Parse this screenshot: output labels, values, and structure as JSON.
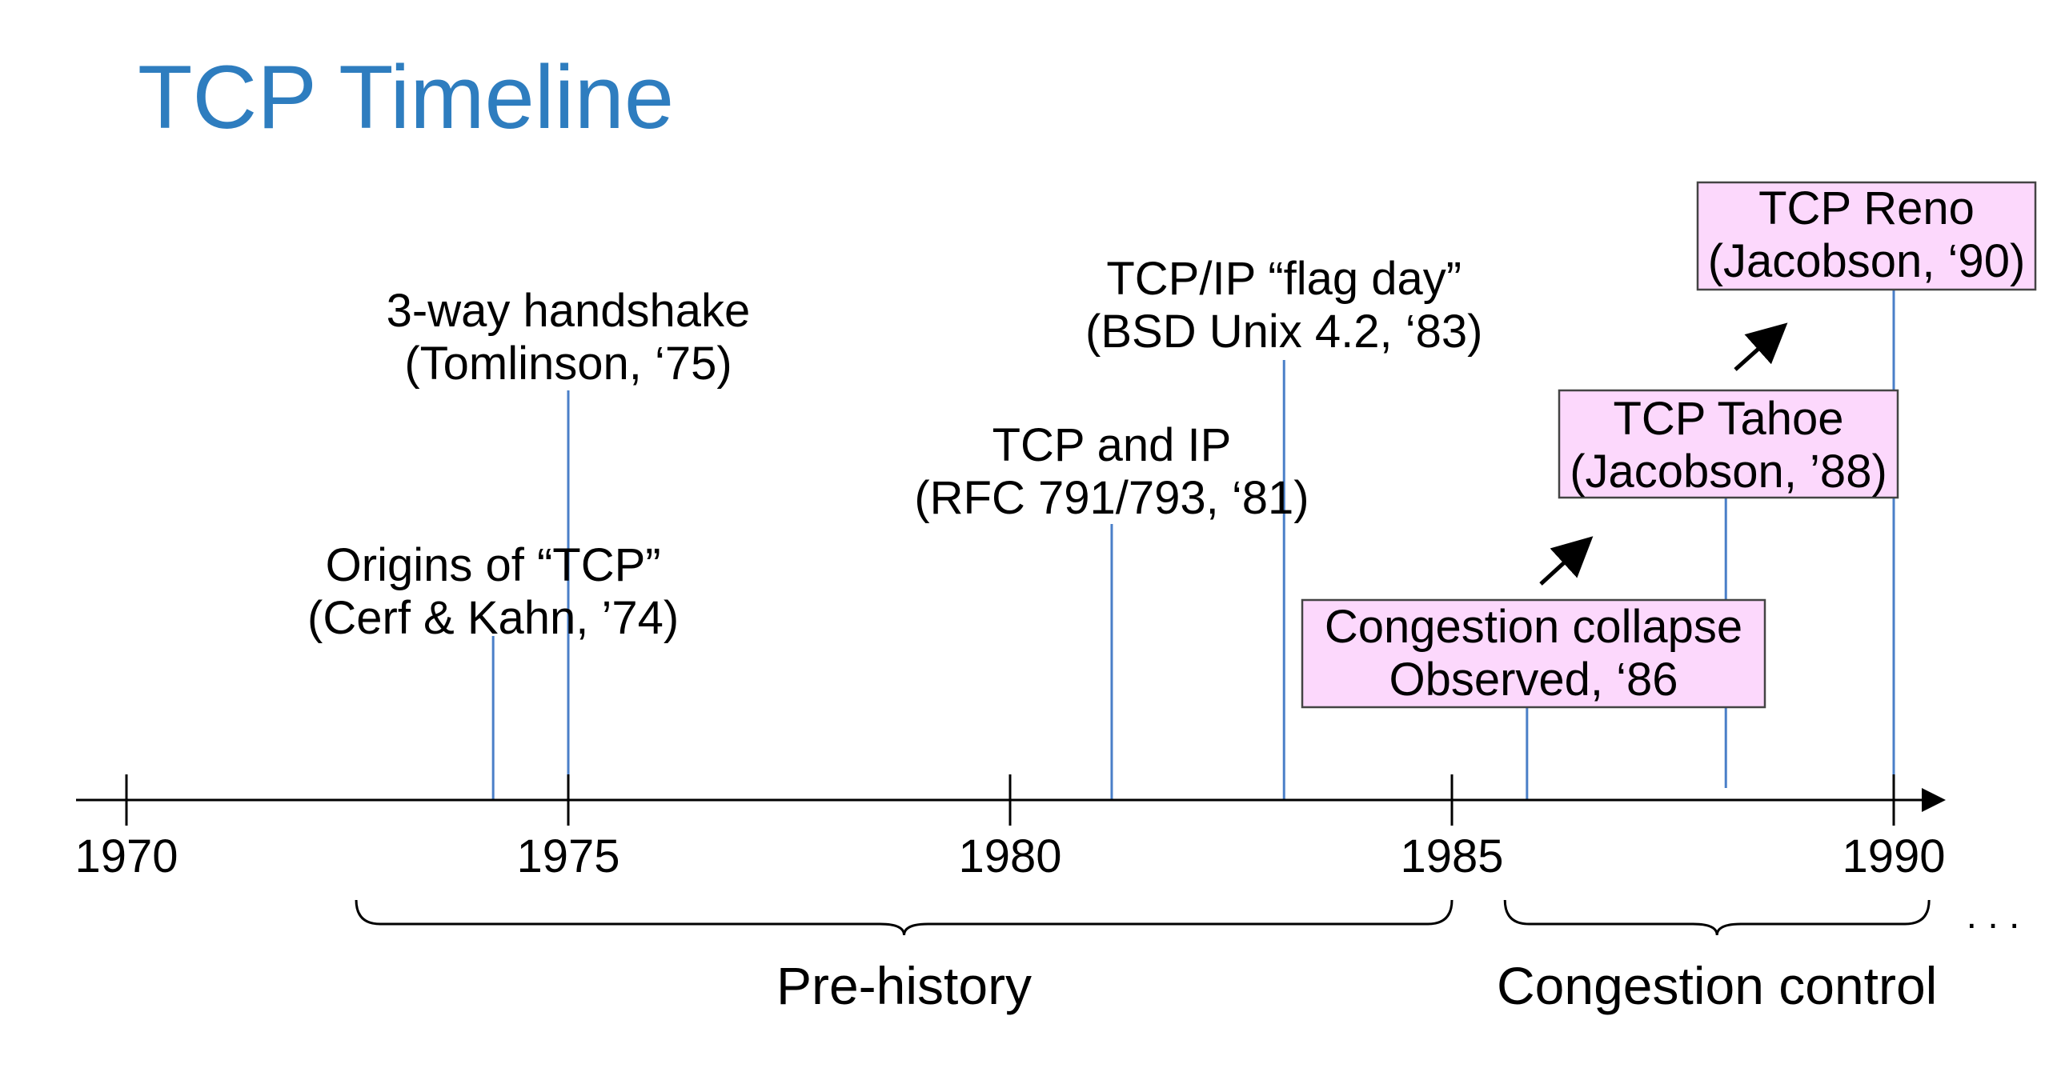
{
  "title": "TCP Timeline",
  "colors": {
    "title": "#2e7dbf",
    "event_line": "#4a7fc8",
    "box_fill": "#fcd8fc",
    "box_stroke": "#444444",
    "axis": "#000000"
  },
  "axis": {
    "ticks": [
      1970,
      1975,
      1980,
      1985,
      1990
    ],
    "ellipsis": ". . ."
  },
  "events": [
    {
      "year": 1974.15,
      "line1": "Origins of “TCP”",
      "line2": "(Cerf & Kahn, ’74)",
      "boxed": false
    },
    {
      "year": 1975.0,
      "line1": "3-way handshake",
      "line2": "(Tomlinson, ‘75)",
      "boxed": false
    },
    {
      "year": 1981.15,
      "line1": "TCP and IP",
      "line2": "(RFC 791/793, ‘81)",
      "boxed": false
    },
    {
      "year": 1983.1,
      "line1": "TCP/IP “flag day”",
      "line2": "(BSD Unix 4.2, ‘83)",
      "boxed": false
    },
    {
      "year": 1985.85,
      "line1": "Congestion collapse",
      "line2": "Observed, ‘86",
      "boxed": true
    },
    {
      "year": 1988.1,
      "line1": "TCP Tahoe",
      "line2": "(Jacobson, ’88)",
      "boxed": true
    },
    {
      "year": 1990.0,
      "line1": "TCP Reno",
      "line2": "(Jacobson, ‘90)",
      "boxed": true
    }
  ],
  "periods": [
    {
      "label": "Pre-history",
      "start": 1972.6,
      "end": 1985.0
    },
    {
      "label": "Congestion control",
      "start": 1985.6,
      "end": 1990.4
    }
  ]
}
